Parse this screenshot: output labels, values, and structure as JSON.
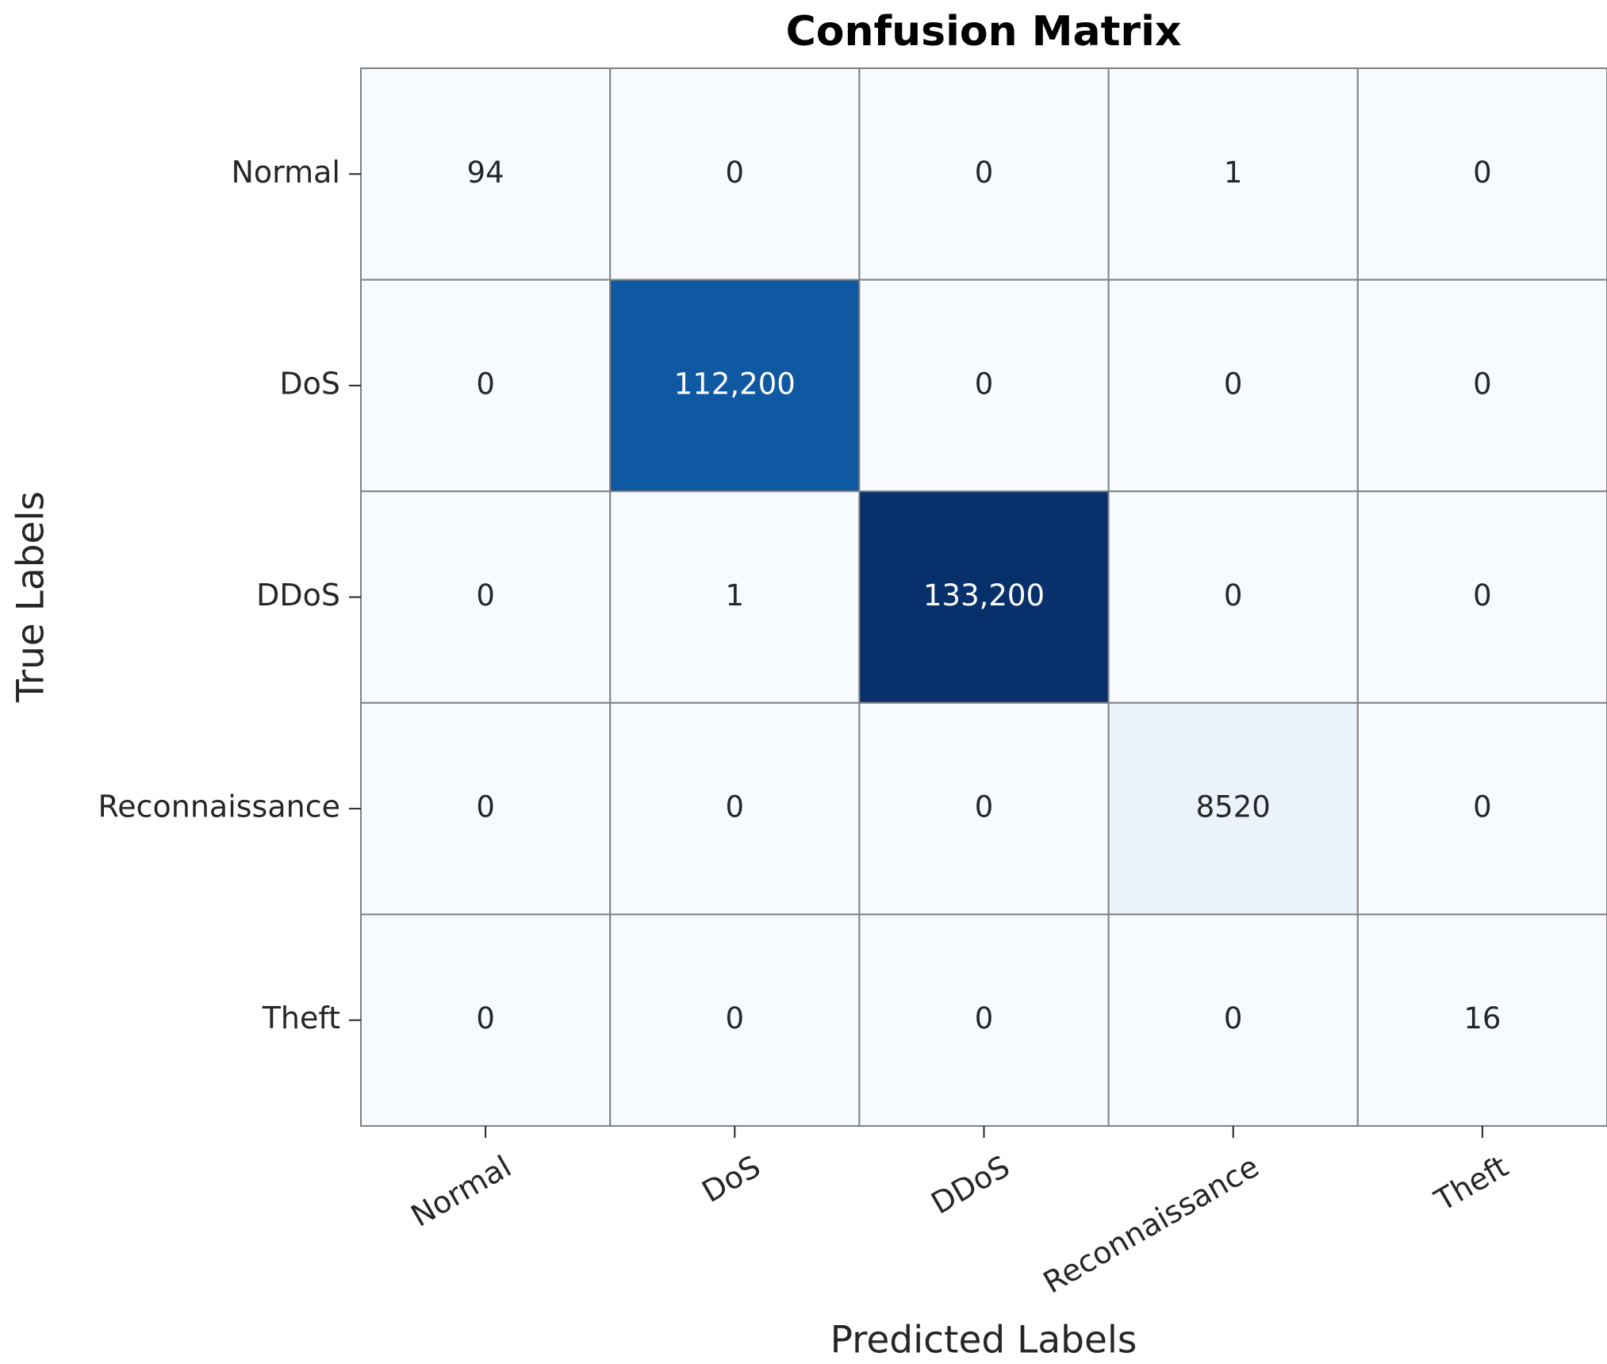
{
  "chart_data": {
    "type": "heatmap",
    "title": "Confusion Matrix",
    "x_label": "Predicted Labels",
    "y_label": "True Labels",
    "x_categories": [
      "Normal",
      "DoS",
      "DDoS",
      "Reconnaissance",
      "Theft"
    ],
    "y_categories": [
      "Normal",
      "DoS",
      "DDoS",
      "Reconnaissance",
      "Theft"
    ],
    "values": [
      [
        94,
        0,
        0,
        1,
        0
      ],
      [
        0,
        112200,
        0,
        0,
        0
      ],
      [
        0,
        1,
        133200,
        0,
        0
      ],
      [
        0,
        0,
        0,
        8520,
        0
      ],
      [
        0,
        0,
        0,
        0,
        16
      ]
    ],
    "value_labels": [
      [
        "94",
        "0",
        "0",
        "1",
        "0"
      ],
      [
        "0",
        "112,200",
        "0",
        "0",
        "0"
      ],
      [
        "0",
        "1",
        "133,200",
        "0",
        "0"
      ],
      [
        "0",
        "0",
        "0",
        "8520",
        "0"
      ],
      [
        "0",
        "0",
        "0",
        "0",
        "16"
      ]
    ],
    "colormap": "Blues",
    "colorbar": false
  }
}
